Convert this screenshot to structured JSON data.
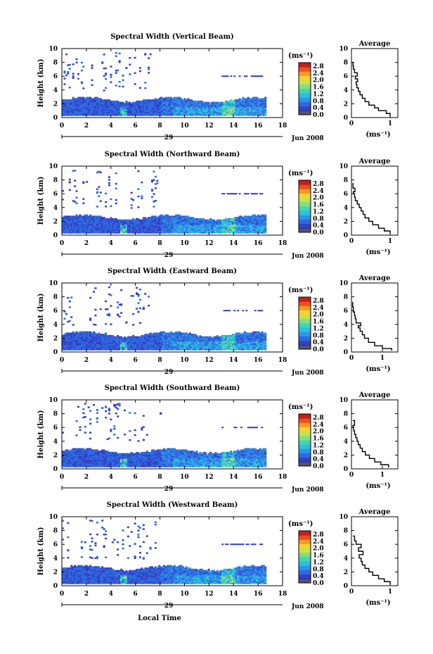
{
  "chart_data": [
    {
      "type": "heatmap",
      "title": "Spectral Width (Vertical Beam)",
      "ylabel": "Height (km)",
      "xlim": [
        0,
        18
      ],
      "ylim": [
        0,
        10
      ],
      "xticks": [
        "0",
        "2",
        "4",
        "6",
        "8",
        "10",
        "12",
        "14",
        "16",
        "18"
      ],
      "yticks": [
        "0",
        "2",
        "4",
        "6",
        "8",
        "10"
      ],
      "date_day": "29",
      "date_month": "Jun 2008",
      "colorbar": {
        "label": "(ms⁻¹)",
        "ticks": [
          "0.0",
          "0.4",
          "0.8",
          "1.2",
          "1.6",
          "2.0",
          "2.4",
          "2.8"
        ],
        "range": [
          0,
          3.0
        ]
      },
      "profile": {
        "title": "Average",
        "xlabel": "(ms⁻¹)",
        "xlim": [
          0,
          1.2
        ],
        "xticks": [
          "0",
          "1"
        ],
        "yticks": [
          "0",
          "2",
          "4",
          "6",
          "8",
          "10"
        ],
        "points": [
          [
            1.0,
            0.2
          ],
          [
            0.9,
            0.6
          ],
          [
            0.7,
            1.0
          ],
          [
            0.6,
            1.4
          ],
          [
            0.45,
            1.8
          ],
          [
            0.35,
            2.3
          ],
          [
            0.28,
            2.8
          ],
          [
            0.22,
            3.3
          ],
          [
            0.18,
            3.8
          ],
          [
            0.14,
            4.3
          ],
          [
            0.12,
            4.8
          ],
          [
            0.16,
            5.2
          ],
          [
            0.1,
            5.6
          ],
          [
            0.15,
            6.0
          ],
          [
            0.08,
            6.5
          ],
          [
            0.05,
            7.0
          ],
          [
            0.04,
            7.5
          ],
          [
            0.03,
            8.0
          ]
        ]
      }
    },
    {
      "type": "heatmap",
      "title": "Spectral Width (Northward Beam)",
      "ylabel": "Height (km)",
      "xlim": [
        0,
        18
      ],
      "ylim": [
        0,
        10
      ],
      "xticks": [
        "0",
        "2",
        "4",
        "6",
        "8",
        "10",
        "12",
        "14",
        "16",
        "18"
      ],
      "yticks": [
        "0",
        "2",
        "4",
        "6",
        "8",
        "10"
      ],
      "date_day": "29",
      "date_month": "Jun 2008",
      "colorbar": {
        "label": "(ms⁻¹)",
        "ticks": [
          "0.0",
          "0.4",
          "0.8",
          "1.2",
          "1.6",
          "2.0",
          "2.4",
          "2.8"
        ],
        "range": [
          0,
          3.0
        ]
      },
      "profile": {
        "title": "Average",
        "xlabel": "(ms⁻¹)",
        "xlim": [
          0,
          1.2
        ],
        "xticks": [
          "0",
          "1"
        ],
        "yticks": [
          "0",
          "2",
          "4",
          "6",
          "8",
          "10"
        ],
        "points": [
          [
            1.0,
            0.2
          ],
          [
            0.85,
            0.6
          ],
          [
            0.7,
            1.0
          ],
          [
            0.55,
            1.5
          ],
          [
            0.45,
            2.0
          ],
          [
            0.35,
            2.5
          ],
          [
            0.3,
            3.0
          ],
          [
            0.25,
            3.5
          ],
          [
            0.2,
            4.0
          ],
          [
            0.15,
            4.5
          ],
          [
            0.1,
            5.0
          ],
          [
            0.08,
            5.5
          ],
          [
            0.05,
            6.0
          ],
          [
            0.09,
            6.3
          ],
          [
            0.04,
            6.8
          ],
          [
            0.03,
            7.5
          ]
        ]
      }
    },
    {
      "type": "heatmap",
      "title": "Spectral Width (Eastward Beam)",
      "ylabel": "Height (km)",
      "xlim": [
        0,
        18
      ],
      "ylim": [
        0,
        10
      ],
      "xticks": [
        "0",
        "2",
        "4",
        "6",
        "8",
        "10",
        "12",
        "14",
        "16",
        "18"
      ],
      "yticks": [
        "0",
        "2",
        "4",
        "6",
        "8",
        "10"
      ],
      "date_day": "29",
      "date_month": "Jun 2008",
      "colorbar": {
        "label": "(ms⁻¹)",
        "ticks": [
          "0.0",
          "0.4",
          "0.8",
          "1.2",
          "1.6",
          "2.0",
          "2.4",
          "2.8"
        ],
        "range": [
          0,
          3.0
        ]
      },
      "profile": {
        "title": "Average",
        "xlabel": "(ms⁻¹)",
        "xlim": [
          0,
          1.5
        ],
        "xticks": [
          "0",
          "1"
        ],
        "yticks": [
          "0",
          "2",
          "4",
          "6",
          "8",
          "10"
        ],
        "points": [
          [
            1.3,
            0.2
          ],
          [
            1.0,
            0.5
          ],
          [
            0.75,
            0.9
          ],
          [
            0.55,
            1.4
          ],
          [
            0.42,
            2.0
          ],
          [
            0.35,
            2.5
          ],
          [
            0.28,
            3.0
          ],
          [
            0.22,
            3.5
          ],
          [
            0.3,
            3.8
          ],
          [
            0.15,
            4.2
          ],
          [
            0.12,
            4.8
          ],
          [
            0.1,
            5.3
          ],
          [
            0.06,
            5.8
          ],
          [
            0.04,
            6.5
          ],
          [
            0.03,
            7.2
          ]
        ]
      }
    },
    {
      "type": "heatmap",
      "title": "Spectral Width (Southward Beam)",
      "ylabel": "Height (km)",
      "xlim": [
        0,
        18
      ],
      "ylim": [
        0,
        10
      ],
      "xticks": [
        "0",
        "2",
        "4",
        "6",
        "8",
        "10",
        "12",
        "14",
        "16",
        "18"
      ],
      "yticks": [
        "0",
        "2",
        "4",
        "6",
        "8",
        "10"
      ],
      "date_day": "29",
      "date_month": "Jun 2008",
      "colorbar": {
        "label": "(ms⁻¹)",
        "ticks": [
          "0.0",
          "0.4",
          "0.8",
          "1.2",
          "1.6",
          "2.0",
          "2.4",
          "2.8"
        ],
        "range": [
          0,
          3.0
        ]
      },
      "profile": {
        "title": "Average",
        "xlabel": "(ms⁻¹)",
        "xlim": [
          0,
          1.5
        ],
        "xticks": [
          "0",
          "1"
        ],
        "yticks": [
          "0",
          "2",
          "4",
          "6",
          "8",
          "10"
        ],
        "points": [
          [
            1.2,
            0.2
          ],
          [
            0.95,
            0.6
          ],
          [
            0.75,
            1.0
          ],
          [
            0.58,
            1.5
          ],
          [
            0.45,
            2.0
          ],
          [
            0.35,
            2.5
          ],
          [
            0.28,
            3.0
          ],
          [
            0.22,
            3.5
          ],
          [
            0.18,
            4.0
          ],
          [
            0.14,
            4.5
          ],
          [
            0.1,
            5.0
          ],
          [
            0.07,
            5.5
          ],
          [
            0.05,
            6.0
          ],
          [
            0.1,
            6.3
          ],
          [
            0.04,
            7.0
          ]
        ]
      }
    },
    {
      "type": "heatmap",
      "title": "Spectral Width (Westward Beam)",
      "ylabel": "Height (km)",
      "xlabel": "Local Time",
      "xlim": [
        0,
        18
      ],
      "ylim": [
        0,
        10
      ],
      "xticks": [
        "0",
        "2",
        "4",
        "6",
        "8",
        "10",
        "12",
        "14",
        "16",
        "18"
      ],
      "yticks": [
        "0",
        "2",
        "4",
        "6",
        "8",
        "10"
      ],
      "date_day": "29",
      "date_month": "Jun 2008",
      "colorbar": {
        "label": "(ms⁻¹)",
        "ticks": [
          "0.0",
          "0.4",
          "0.8",
          "1.2",
          "1.6",
          "2.0",
          "2.4",
          "2.8"
        ],
        "range": [
          0,
          3.0
        ]
      },
      "profile": {
        "title": "Average",
        "xlabel": "(ms⁻¹)",
        "xlim": [
          0,
          1.2
        ],
        "xticks": [
          "0",
          "1"
        ],
        "yticks": [
          "0",
          "2",
          "4",
          "6",
          "8",
          "10"
        ],
        "points": [
          [
            1.0,
            0.2
          ],
          [
            0.85,
            0.6
          ],
          [
            0.7,
            1.0
          ],
          [
            0.55,
            1.5
          ],
          [
            0.45,
            2.0
          ],
          [
            0.35,
            2.5
          ],
          [
            0.28,
            3.0
          ],
          [
            0.25,
            3.5
          ],
          [
            0.2,
            4.0
          ],
          [
            0.3,
            4.5
          ],
          [
            0.18,
            5.0
          ],
          [
            0.25,
            5.5
          ],
          [
            0.12,
            6.0
          ],
          [
            0.08,
            6.5
          ],
          [
            0.04,
            7.2
          ]
        ]
      }
    }
  ],
  "colors": {
    "scale": [
      "#2b2a8c",
      "#3341c4",
      "#2f6ae0",
      "#2f94e8",
      "#2cbfe3",
      "#3fd6b7",
      "#7ee083",
      "#c7e34a",
      "#f5d232",
      "#f59a22",
      "#e8521c",
      "#c81b1b"
    ],
    "floor": "#555566"
  }
}
